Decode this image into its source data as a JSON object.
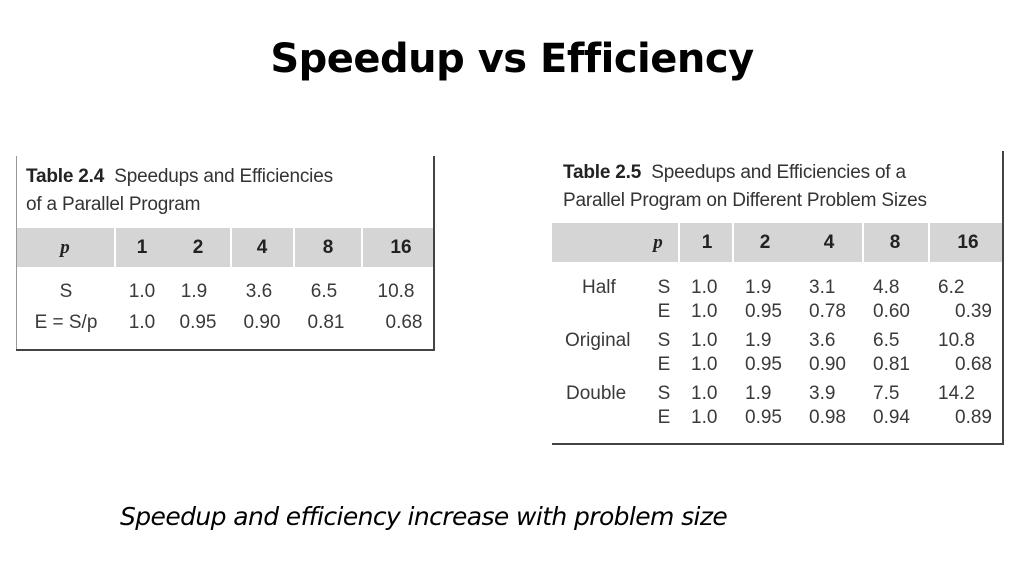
{
  "slide": {
    "title": "Speedup vs Efficiency",
    "caption": "Speedup and efficiency increase with problem size"
  },
  "table24": {
    "label": "Table 2.4",
    "title_line1": "Speedups and Efficiencies",
    "title_line2": "of a Parallel Program",
    "header": [
      "p",
      "1",
      "2",
      "4",
      "8",
      "16"
    ],
    "rows": [
      {
        "label": "S",
        "values": [
          "1.0",
          "1.9",
          "3.6",
          "6.5",
          "10.8"
        ]
      },
      {
        "label": "E = S/p",
        "values": [
          "1.0",
          "0.95",
          "0.90",
          "0.81",
          "0.68"
        ]
      }
    ]
  },
  "table25": {
    "label": "Table 2.5",
    "title_line1": "Speedups and Efficiencies of a",
    "title_line2": "Parallel Program on Different Problem Sizes",
    "header": [
      "p",
      "1",
      "2",
      "4",
      "8",
      "16"
    ],
    "groups": [
      {
        "name": "Half",
        "S": [
          "1.0",
          "1.9",
          "3.1",
          "4.8",
          "6.2"
        ],
        "E": [
          "1.0",
          "0.95",
          "0.78",
          "0.60",
          "0.39"
        ]
      },
      {
        "name": "Original",
        "S": [
          "1.0",
          "1.9",
          "3.6",
          "6.5",
          "10.8"
        ],
        "E": [
          "1.0",
          "0.95",
          "0.90",
          "0.81",
          "0.68"
        ]
      },
      {
        "name": "Double",
        "S": [
          "1.0",
          "1.9",
          "3.9",
          "7.5",
          "14.2"
        ],
        "E": [
          "1.0",
          "0.95",
          "0.98",
          "0.94",
          "0.89"
        ]
      }
    ],
    "s_label": "S",
    "e_label": "E"
  }
}
